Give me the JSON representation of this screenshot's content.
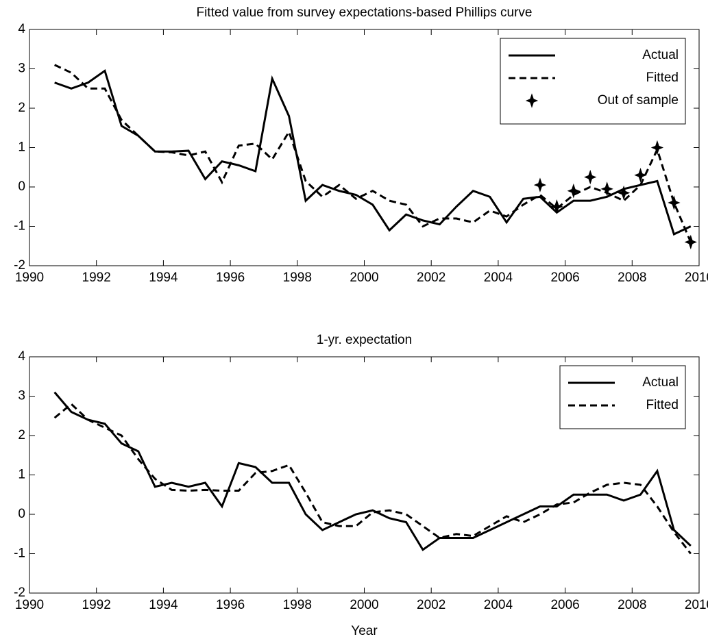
{
  "chart_data": [
    {
      "type": "line",
      "title": "Fitted value from survey expectations-based Phillips curve",
      "x": [
        1990.75,
        1991.25,
        1991.75,
        1992.25,
        1992.75,
        1993.25,
        1993.75,
        1994.25,
        1994.75,
        1995.25,
        1995.75,
        1996.25,
        1996.75,
        1997.25,
        1997.75,
        1998.25,
        1998.75,
        1999.25,
        1999.75,
        2000.25,
        2000.75,
        2001.25,
        2001.75,
        2002.25,
        2002.75,
        2003.25,
        2003.75,
        2004.25,
        2004.75,
        2005.25,
        2005.75,
        2006.25,
        2006.75,
        2007.25,
        2007.75,
        2008.25,
        2008.75,
        2009.25,
        2009.75
      ],
      "series": [
        {
          "name": "Actual",
          "color": "#000000",
          "linestyle": "solid",
          "marker": "none",
          "values": [
            2.65,
            2.5,
            2.65,
            2.95,
            1.55,
            1.3,
            0.9,
            0.9,
            0.92,
            0.2,
            0.65,
            0.55,
            0.4,
            2.75,
            1.8,
            -0.35,
            0.05,
            -0.1,
            -0.2,
            -0.45,
            -1.1,
            -0.7,
            -0.85,
            -0.95,
            -0.5,
            -0.1,
            -0.25,
            -0.9,
            -0.3,
            -0.25,
            -0.65,
            -0.35,
            -0.35,
            -0.25,
            -0.05,
            0.05,
            0.15,
            -1.2,
            -1.0
          ]
        },
        {
          "name": "Fitted",
          "color": "#000000",
          "linestyle": "dashed",
          "marker": "none",
          "values": [
            3.1,
            2.9,
            2.5,
            2.5,
            1.7,
            1.3,
            0.9,
            0.88,
            0.8,
            0.9,
            0.12,
            1.05,
            1.1,
            0.7,
            1.4,
            0.15,
            -0.25,
            0.05,
            -0.3,
            -0.1,
            -0.35,
            -0.45,
            -1.0,
            -0.8,
            -0.8,
            -0.9,
            -0.6,
            -0.75,
            -0.45,
            -0.2,
            -0.55,
            -0.2,
            0.0,
            -0.15,
            -0.35,
            0.05,
            0.95,
            -0.4,
            -1.4
          ]
        },
        {
          "name": "Out of sample",
          "color": "#000000",
          "linestyle": "none",
          "marker": "star",
          "values": [
            null,
            null,
            null,
            null,
            null,
            null,
            null,
            null,
            null,
            null,
            null,
            null,
            null,
            null,
            null,
            null,
            null,
            null,
            null,
            null,
            null,
            null,
            null,
            null,
            null,
            null,
            null,
            null,
            null,
            0.05,
            -0.5,
            -0.1,
            0.25,
            -0.05,
            -0.15,
            0.3,
            1.0,
            -0.4,
            -1.4
          ]
        }
      ],
      "xlim": [
        1990,
        2010
      ],
      "xticks": [
        1990,
        1992,
        1994,
        1996,
        1998,
        2000,
        2002,
        2004,
        2006,
        2008,
        2010
      ],
      "ylim": [
        -2,
        4
      ],
      "yticks": [
        -2,
        -1,
        0,
        1,
        2,
        3,
        4
      ],
      "legend": "upper right"
    },
    {
      "type": "line",
      "title": "1-yr. expectation",
      "xlabel": "Year",
      "x": [
        1990.75,
        1991.25,
        1991.75,
        1992.25,
        1992.75,
        1993.25,
        1993.75,
        1994.25,
        1994.75,
        1995.25,
        1995.75,
        1996.25,
        1996.75,
        1997.25,
        1997.75,
        1998.25,
        1998.75,
        1999.25,
        1999.75,
        2000.25,
        2000.75,
        2001.25,
        2001.75,
        2002.25,
        2002.75,
        2003.25,
        2003.75,
        2004.25,
        2004.75,
        2005.25,
        2005.75,
        2006.25,
        2006.75,
        2007.25,
        2007.75,
        2008.25,
        2008.75,
        2009.25,
        2009.75
      ],
      "series": [
        {
          "name": "Actual",
          "color": "#000000",
          "linestyle": "solid",
          "marker": "none",
          "values": [
            3.1,
            2.6,
            2.4,
            2.3,
            1.8,
            1.6,
            0.7,
            0.8,
            0.7,
            0.8,
            0.2,
            1.3,
            1.2,
            0.8,
            0.8,
            0.0,
            -0.4,
            -0.2,
            0.0,
            0.1,
            -0.1,
            -0.2,
            -0.9,
            -0.6,
            -0.6,
            -0.6,
            -0.4,
            -0.2,
            0.0,
            0.2,
            0.2,
            0.5,
            0.5,
            0.5,
            0.35,
            0.5,
            1.1,
            -0.4,
            -0.8
          ]
        },
        {
          "name": "Fitted",
          "color": "#000000",
          "linestyle": "dashed",
          "marker": "none",
          "values": [
            2.45,
            2.8,
            2.4,
            2.2,
            2.0,
            1.4,
            0.9,
            0.62,
            0.6,
            0.62,
            0.6,
            0.6,
            1.05,
            1.1,
            1.25,
            0.55,
            -0.2,
            -0.3,
            -0.3,
            0.05,
            0.1,
            0.0,
            -0.3,
            -0.6,
            -0.5,
            -0.55,
            -0.3,
            -0.05,
            -0.2,
            0.0,
            0.25,
            0.3,
            0.55,
            0.75,
            0.8,
            0.75,
            0.2,
            -0.45,
            -1.0
          ]
        }
      ],
      "xlim": [
        1990,
        2010
      ],
      "xticks": [
        1990,
        1992,
        1994,
        1996,
        1998,
        2000,
        2002,
        2004,
        2006,
        2008,
        2010
      ],
      "ylim": [
        -2,
        4
      ],
      "yticks": [
        -2,
        -1,
        0,
        1,
        2,
        3,
        4
      ],
      "legend": "upper right"
    }
  ]
}
